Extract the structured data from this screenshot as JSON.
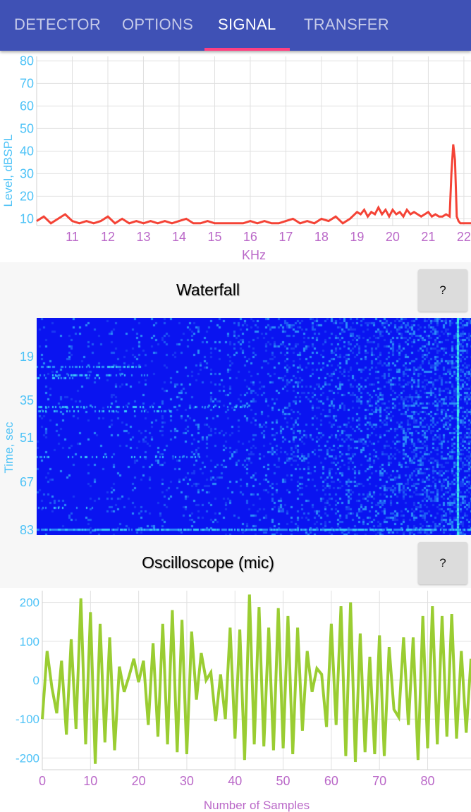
{
  "tabs": [
    {
      "label": "DETECTOR",
      "active": false
    },
    {
      "label": "OPTIONS",
      "active": false
    },
    {
      "label": "SIGNAL",
      "active": true
    },
    {
      "label": "TRANSFER",
      "active": false
    }
  ],
  "colors": {
    "primary": "#3f51b5",
    "indicator": "#ff4081",
    "spectrum": "#f44336",
    "scope": "#9acd32",
    "y_axis_text": "#4fc3f7",
    "x_axis_text": "#ba68c8",
    "waterfall_base": "#0a14f0"
  },
  "spectrum": {
    "ylabel": "Level, dBSPL",
    "xlabel": "KHz",
    "y_ticks": [
      "10",
      "20",
      "30",
      "40",
      "50",
      "60",
      "70",
      "80"
    ],
    "x_ticks": [
      "11",
      "12",
      "13",
      "14",
      "15",
      "16",
      "17",
      "18",
      "19",
      "20",
      "21",
      "22"
    ]
  },
  "waterfall": {
    "title": "Waterfall",
    "help_label": "?",
    "ylabel": "Time, sec",
    "y_ticks": [
      "19",
      "35",
      "51",
      "67",
      "83"
    ]
  },
  "oscilloscope": {
    "title": "Oscilloscope (mic)",
    "help_label": "?",
    "xlabel": "Number of Samples",
    "y_ticks": [
      "200",
      "100",
      "0",
      "-100",
      "-200"
    ],
    "x_ticks": [
      "0",
      "10",
      "20",
      "30",
      "40",
      "50",
      "60",
      "70",
      "80"
    ]
  },
  "chart_data": [
    {
      "type": "line",
      "xlabel": "KHz",
      "ylabel": "Level, dBSPL",
      "xlim": [
        10.0,
        22.2
      ],
      "ylim": [
        7,
        82
      ],
      "grid": true,
      "x": [
        10.0,
        10.2,
        10.4,
        10.6,
        10.8,
        11.0,
        11.2,
        11.4,
        11.6,
        11.8,
        12.0,
        12.2,
        12.4,
        12.6,
        12.8,
        13.0,
        13.2,
        13.4,
        13.6,
        13.8,
        14.0,
        14.2,
        14.4,
        14.6,
        14.8,
        15.0,
        15.2,
        15.4,
        15.6,
        15.8,
        16.0,
        16.2,
        16.4,
        16.6,
        16.8,
        17.0,
        17.2,
        17.4,
        17.6,
        17.8,
        18.0,
        18.2,
        18.4,
        18.6,
        18.8,
        19.0,
        19.1,
        19.2,
        19.3,
        19.4,
        19.5,
        19.6,
        19.7,
        19.8,
        19.9,
        20.0,
        20.1,
        20.2,
        20.3,
        20.4,
        20.5,
        20.6,
        20.7,
        20.8,
        20.9,
        21.0,
        21.1,
        21.2,
        21.3,
        21.4,
        21.5,
        21.6,
        21.65,
        21.7,
        21.75,
        21.8,
        21.85,
        21.9,
        22.0,
        22.2
      ],
      "y": [
        9,
        11,
        8,
        10,
        12,
        9,
        8,
        9,
        8,
        9,
        11,
        8,
        10,
        8,
        9,
        8,
        9,
        8,
        9,
        8,
        9,
        10,
        8,
        8,
        9,
        8,
        8,
        8,
        8,
        8,
        9,
        8,
        9,
        8,
        8,
        9,
        10,
        8,
        9,
        8,
        10,
        9,
        11,
        8,
        10,
        13,
        12,
        14,
        11,
        13,
        12,
        15,
        12,
        14,
        11,
        14,
        12,
        13,
        11,
        14,
        12,
        13,
        12,
        11,
        12,
        13,
        11,
        12,
        11,
        11,
        12,
        11,
        30,
        43,
        36,
        11,
        9,
        8,
        8,
        8
      ]
    },
    {
      "type": "heatmap",
      "ylabel": "Time, sec",
      "y_ticks": [
        19,
        35,
        51,
        67,
        83
      ]
    },
    {
      "type": "line",
      "xlabel": "Number of Samples",
      "xlim": [
        0,
        89
      ],
      "ylim": [
        -230,
        230
      ],
      "grid": true,
      "x": [
        0,
        1,
        2,
        3,
        4,
        5,
        6,
        7,
        8,
        9,
        10,
        11,
        12,
        13,
        14,
        15,
        16,
        17,
        18,
        19,
        20,
        21,
        22,
        23,
        24,
        25,
        26,
        27,
        28,
        29,
        30,
        31,
        32,
        33,
        34,
        35,
        36,
        37,
        38,
        39,
        40,
        41,
        42,
        43,
        44,
        45,
        46,
        47,
        48,
        49,
        50,
        51,
        52,
        53,
        54,
        55,
        56,
        57,
        58,
        59,
        60,
        61,
        62,
        63,
        64,
        65,
        66,
        67,
        68,
        69,
        70,
        71,
        72,
        73,
        74,
        75,
        76,
        77,
        78,
        79,
        80,
        81,
        82,
        83,
        84,
        85,
        86,
        87,
        88,
        89
      ],
      "y": [
        -100,
        75,
        -20,
        -85,
        50,
        -140,
        105,
        -125,
        210,
        -165,
        175,
        -215,
        145,
        -160,
        110,
        -180,
        35,
        -30,
        10,
        55,
        -5,
        50,
        -115,
        95,
        -145,
        145,
        -165,
        180,
        -185,
        155,
        -190,
        125,
        -50,
        70,
        0,
        20,
        -105,
        15,
        -100,
        135,
        -150,
        130,
        -205,
        220,
        -165,
        188,
        -170,
        135,
        -180,
        185,
        -175,
        165,
        -190,
        135,
        -130,
        75,
        -30,
        30,
        15,
        -120,
        145,
        -115,
        190,
        -195,
        200,
        -210,
        120,
        -185,
        60,
        -190,
        115,
        -195,
        85,
        -75,
        -95,
        110,
        -115,
        110,
        -205,
        165,
        -175,
        190,
        -165,
        165,
        -145,
        170,
        -150,
        75,
        -135,
        55
      ]
    }
  ]
}
